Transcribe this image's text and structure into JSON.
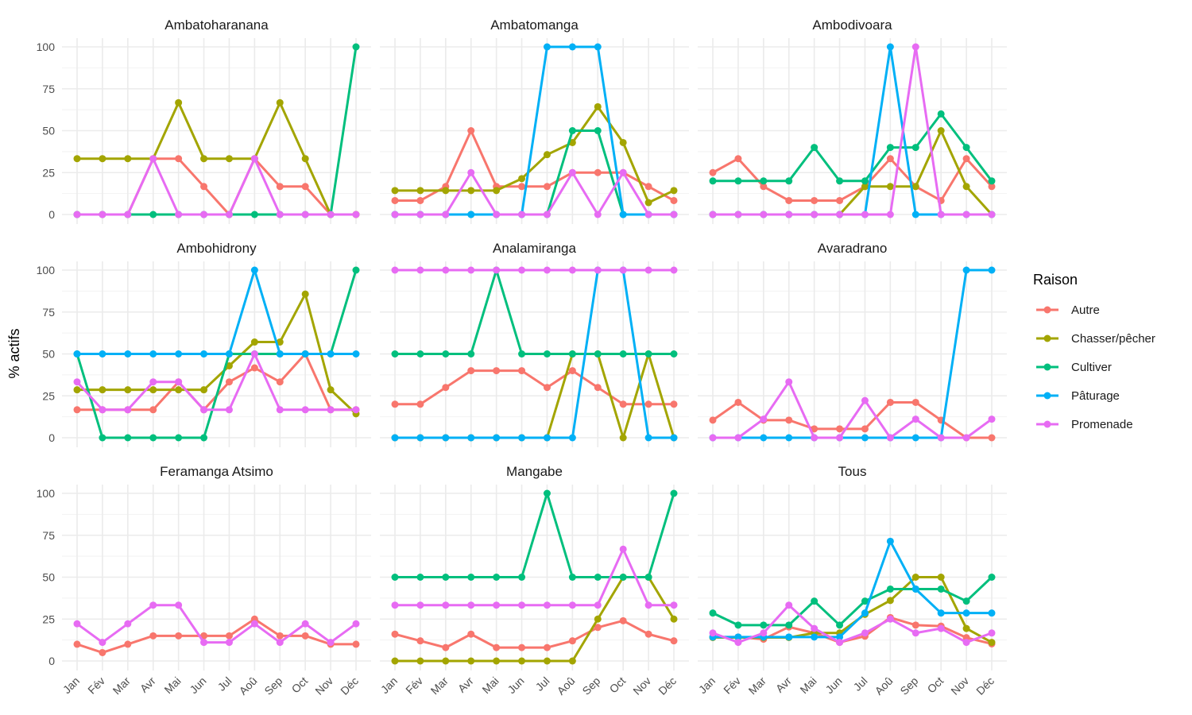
{
  "chart_data": {
    "type": "line",
    "title": "",
    "xlabel": "",
    "ylabel": "% actifs",
    "ylim": [
      0,
      100
    ],
    "yticks": [
      0,
      25,
      50,
      75,
      100
    ],
    "grid": true,
    "legend": {
      "title": "Raison",
      "placement": "right",
      "entries": [
        "Autre",
        "Chasser/pêcher",
        "Cultiver",
        "Pâturage",
        "Promenade"
      ]
    },
    "colors": {
      "Autre": "#F8766D",
      "Chasser/pêcher": "#A3A500",
      "Cultiver": "#00BF7D",
      "Pâturage": "#00B0F6",
      "Promenade": "#E76BF3"
    },
    "categories": [
      "Jan",
      "Fév",
      "Mar",
      "Avr",
      "Mai",
      "Jun",
      "Jul",
      "Aoû",
      "Sep",
      "Oct",
      "Nov",
      "Déc"
    ],
    "panels": [
      {
        "title": "Ambatoharanana",
        "series": [
          {
            "name": "Autre",
            "values": [
              0,
              0,
              0,
              33.3,
              33.3,
              16.7,
              0,
              33.3,
              16.7,
              16.7,
              0,
              0
            ]
          },
          {
            "name": "Chasser/pêcher",
            "values": [
              33.3,
              33.3,
              33.3,
              33.3,
              66.7,
              33.3,
              33.3,
              33.3,
              66.7,
              33.3,
              0,
              0
            ]
          },
          {
            "name": "Cultiver",
            "values": [
              0,
              0,
              0,
              0,
              0,
              0,
              0,
              0,
              0,
              0,
              0,
              100
            ]
          },
          {
            "name": "Promenade",
            "values": [
              0,
              0,
              0,
              33.3,
              0,
              0,
              0,
              33.3,
              0,
              0,
              0,
              0
            ]
          }
        ]
      },
      {
        "title": "Ambatomanga",
        "series": [
          {
            "name": "Autre",
            "values": [
              8.3,
              8.3,
              16.7,
              50,
              16.7,
              16.7,
              16.7,
              25,
              25,
              25,
              16.7,
              8.3
            ]
          },
          {
            "name": "Chasser/pêcher",
            "values": [
              14.3,
              14.3,
              14.3,
              14.3,
              14.3,
              21.4,
              35.7,
              42.9,
              64.3,
              42.9,
              7.1,
              14.3
            ]
          },
          {
            "name": "Cultiver",
            "values": [
              0,
              0,
              0,
              0,
              0,
              0,
              0,
              50,
              50,
              0,
              0,
              0
            ]
          },
          {
            "name": "Pâturage",
            "values": [
              0,
              0,
              0,
              0,
              0,
              0,
              100,
              100,
              100,
              0,
              0,
              0
            ]
          },
          {
            "name": "Promenade",
            "values": [
              0,
              0,
              0,
              25,
              0,
              0,
              0,
              25,
              0,
              25,
              0,
              0
            ]
          }
        ]
      },
      {
        "title": "Ambodivoara",
        "series": [
          {
            "name": "Autre",
            "values": [
              25,
              33.3,
              16.7,
              8.3,
              8.3,
              8.3,
              16.7,
              33.3,
              16.7,
              8.3,
              33.3,
              16.7
            ]
          },
          {
            "name": "Chasser/pêcher",
            "values": [
              0,
              0,
              0,
              0,
              0,
              0,
              16.7,
              16.7,
              16.7,
              50,
              16.7,
              0
            ]
          },
          {
            "name": "Cultiver",
            "values": [
              20,
              20,
              20,
              20,
              40,
              20,
              20,
              40,
              40,
              60,
              40,
              20
            ]
          },
          {
            "name": "Pâturage",
            "values": [
              0,
              0,
              0,
              0,
              0,
              0,
              0,
              100,
              0,
              0,
              0,
              0
            ]
          },
          {
            "name": "Promenade",
            "values": [
              0,
              0,
              0,
              0,
              0,
              0,
              0,
              0,
              100,
              0,
              0,
              0
            ]
          }
        ]
      },
      {
        "title": "Ambohidrony",
        "series": [
          {
            "name": "Autre",
            "values": [
              16.7,
              16.7,
              16.7,
              16.7,
              33.3,
              16.7,
              33.3,
              41.7,
              33.3,
              50,
              16.7,
              16.7
            ]
          },
          {
            "name": "Chasser/pêcher",
            "values": [
              28.6,
              28.6,
              28.6,
              28.6,
              28.6,
              28.6,
              42.9,
              57.1,
              57.1,
              85.7,
              28.6,
              14.3
            ]
          },
          {
            "name": "Cultiver",
            "values": [
              50,
              0,
              0,
              0,
              0,
              0,
              50,
              50,
              50,
              50,
              50,
              100
            ]
          },
          {
            "name": "Pâturage",
            "values": [
              50,
              50,
              50,
              50,
              50,
              50,
              50,
              100,
              50,
              50,
              50,
              50
            ]
          },
          {
            "name": "Promenade",
            "values": [
              33.3,
              16.7,
              16.7,
              33.3,
              33.3,
              16.7,
              16.7,
              50,
              16.7,
              16.7,
              16.7,
              16.7
            ]
          }
        ]
      },
      {
        "title": "Analamiranga",
        "series": [
          {
            "name": "Autre",
            "values": [
              20,
              20,
              30,
              40,
              40,
              40,
              30,
              40,
              30,
              20,
              20,
              20
            ]
          },
          {
            "name": "Chasser/pêcher",
            "values": [
              0,
              0,
              0,
              0,
              0,
              0,
              0,
              50,
              50,
              0,
              50,
              0
            ]
          },
          {
            "name": "Cultiver",
            "values": [
              50,
              50,
              50,
              50,
              100,
              50,
              50,
              50,
              50,
              50,
              50,
              50
            ]
          },
          {
            "name": "Pâturage",
            "values": [
              0,
              0,
              0,
              0,
              0,
              0,
              0,
              0,
              100,
              100,
              0,
              0
            ]
          },
          {
            "name": "Promenade",
            "values": [
              100,
              100,
              100,
              100,
              100,
              100,
              100,
              100,
              100,
              100,
              100,
              100
            ]
          }
        ]
      },
      {
        "title": "Avaradrano",
        "series": [
          {
            "name": "Autre",
            "values": [
              10.5,
              21.1,
              10.5,
              10.5,
              5.3,
              5.3,
              5.3,
              21.1,
              21.1,
              10.5,
              0,
              0
            ]
          },
          {
            "name": "Pâturage",
            "values": [
              0,
              0,
              0,
              0,
              0,
              0,
              0,
              0,
              0,
              0,
              100,
              100
            ]
          },
          {
            "name": "Promenade",
            "values": [
              0,
              0,
              11.1,
              33.3,
              0,
              0,
              22.2,
              0,
              11.1,
              0,
              0,
              11.1
            ]
          }
        ]
      },
      {
        "title": "Feramanga Atsimo",
        "series": [
          {
            "name": "Autre",
            "values": [
              10,
              5,
              10,
              15,
              15,
              15,
              15,
              25,
              15,
              15,
              10,
              10
            ]
          },
          {
            "name": "Promenade",
            "values": [
              22.2,
              11.1,
              22.2,
              33.3,
              33.3,
              11.1,
              11.1,
              22.2,
              11.1,
              22.2,
              11.1,
              22.2
            ]
          }
        ]
      },
      {
        "title": "Mangabe",
        "series": [
          {
            "name": "Autre",
            "values": [
              16,
              12,
              8,
              16,
              8,
              8,
              8,
              12,
              20,
              24,
              16,
              12
            ]
          },
          {
            "name": "Chasser/pêcher",
            "values": [
              0,
              0,
              0,
              0,
              0,
              0,
              0,
              0,
              25,
              50,
              50,
              25
            ]
          },
          {
            "name": "Cultiver",
            "values": [
              50,
              50,
              50,
              50,
              50,
              50,
              100,
              50,
              50,
              50,
              50,
              100
            ]
          },
          {
            "name": "Promenade",
            "values": [
              33.3,
              33.3,
              33.3,
              33.3,
              33.3,
              33.3,
              33.3,
              33.3,
              33.3,
              66.7,
              33.3,
              33.3
            ]
          }
        ]
      },
      {
        "title": "Tous",
        "series": [
          {
            "name": "Autre",
            "values": [
              14.3,
              14.3,
              13,
              20.3,
              16.7,
              11.1,
              14.8,
              25.9,
              21.4,
              20.8,
              13.9,
              10.2
            ]
          },
          {
            "name": "Chasser/pêcher",
            "values": [
              14,
              14,
              14,
              14,
              16.7,
              16.7,
              27.8,
              36.1,
              50,
              50,
              19.4,
              11.1
            ]
          },
          {
            "name": "Cultiver",
            "values": [
              28.6,
              21.4,
              21.4,
              21.4,
              35.7,
              21.4,
              35.7,
              42.9,
              42.9,
              42.9,
              35.7,
              50
            ]
          },
          {
            "name": "Pâturage",
            "values": [
              14.3,
              14.3,
              14.3,
              14.3,
              14.3,
              14.3,
              28.6,
              71.4,
              42.9,
              28.6,
              28.6,
              28.6
            ]
          },
          {
            "name": "Promenade",
            "values": [
              16.7,
              11.1,
              16.7,
              33.3,
              19.4,
              11.1,
              16.7,
              25,
              16.7,
              19.4,
              11.1,
              16.7
            ]
          }
        ]
      }
    ]
  }
}
